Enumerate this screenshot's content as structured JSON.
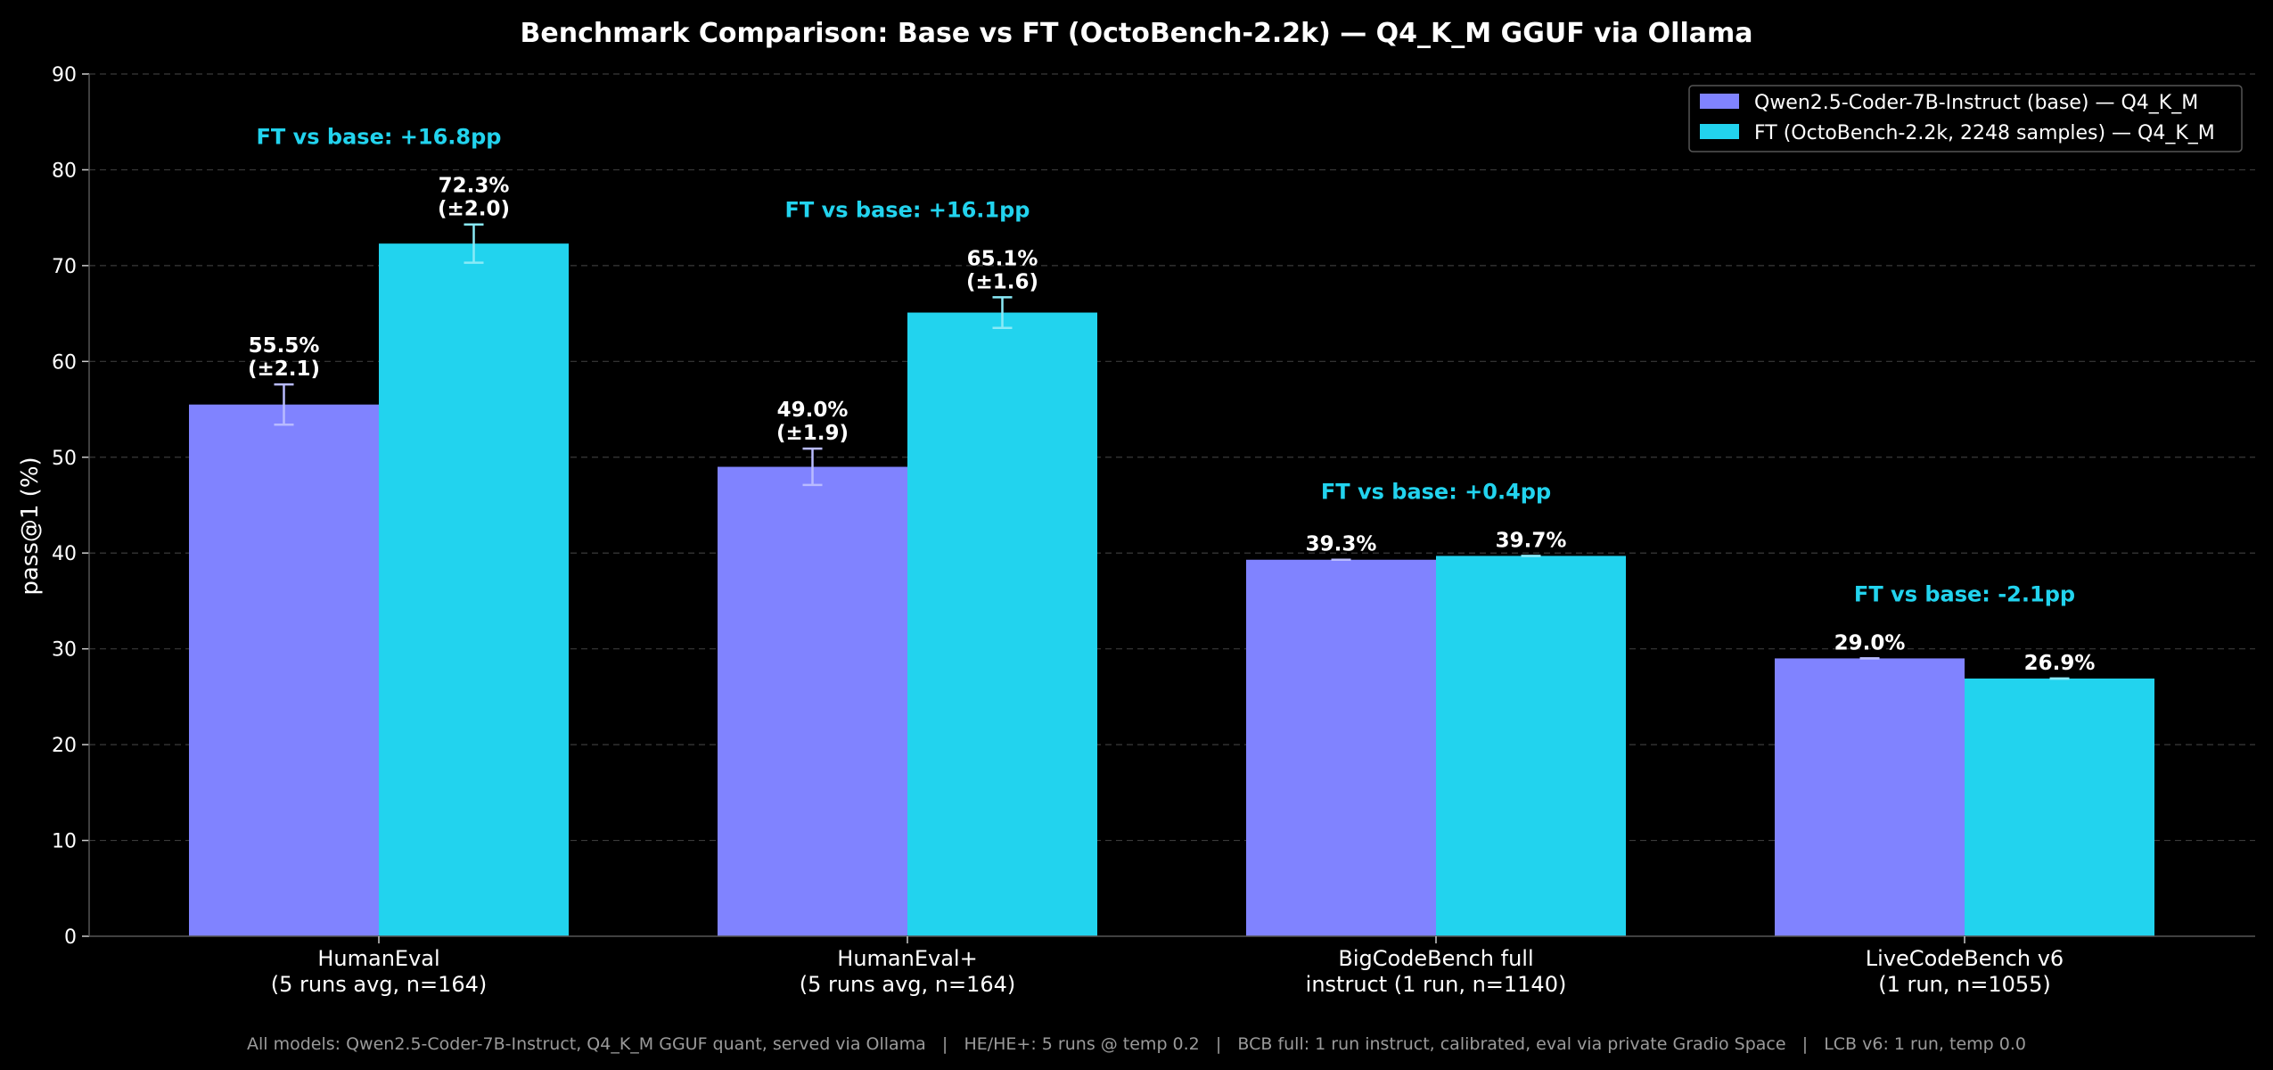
{
  "colors": {
    "background": "#000000",
    "base": "#8083ff",
    "ft": "#22d3ee",
    "base_err": "#b9bbff",
    "ft_err": "#8aeaf7",
    "grid": "#3a3a3a",
    "delta_text": "#22d3ee",
    "footnote": "#9a9a9a"
  },
  "chart_data": {
    "type": "bar",
    "title": "Benchmark Comparison: Base vs FT (OctoBench-2.2k) — Q4_K_M GGUF via Ollama",
    "ylabel": "pass@1 (%)",
    "ylim": [
      0,
      90
    ],
    "yticks": [
      0,
      10,
      20,
      30,
      40,
      50,
      60,
      70,
      80,
      90
    ],
    "grid": true,
    "legend_position": "top-right",
    "categories": [
      [
        "HumanEval",
        "(5 runs avg, n=164)"
      ],
      [
        "HumanEval+",
        "(5 runs avg, n=164)"
      ],
      [
        "BigCodeBench full",
        "instruct (1 run, n=1140)"
      ],
      [
        "LiveCodeBench v6",
        "(1 run, n=1055)"
      ]
    ],
    "series": [
      {
        "name": "Qwen2.5-Coder-7B-Instruct (base) — Q4_K_M",
        "values": [
          55.5,
          49.0,
          39.3,
          29.0
        ],
        "errors": [
          2.1,
          1.9,
          0,
          0
        ],
        "labels": [
          [
            "55.5%",
            "(±2.1)"
          ],
          [
            "49.0%",
            "(±1.9)"
          ],
          [
            "39.3%"
          ],
          [
            "29.0%"
          ]
        ]
      },
      {
        "name": "FT (OctoBench-2.2k, 2248 samples) — Q4_K_M",
        "values": [
          72.3,
          65.1,
          39.7,
          26.9
        ],
        "errors": [
          2.0,
          1.6,
          0,
          0
        ],
        "labels": [
          [
            "72.3%",
            "(±2.0)"
          ],
          [
            "65.1%",
            "(±1.6)"
          ],
          [
            "39.7%"
          ],
          [
            "26.9%"
          ]
        ]
      }
    ],
    "annotations": [
      "FT vs base: +16.8pp",
      "FT vs base: +16.1pp",
      "FT vs base: +0.4pp",
      "FT vs base: -2.1pp"
    ],
    "footnote": "All models: Qwen2.5-Coder-7B-Instruct, Q4_K_M GGUF quant, served via Ollama   |   HE/HE+: 5 runs @ temp 0.2   |   BCB full: 1 run instruct, calibrated, eval via private Gradio Space   |   LCB v6: 1 run, temp 0.0"
  }
}
